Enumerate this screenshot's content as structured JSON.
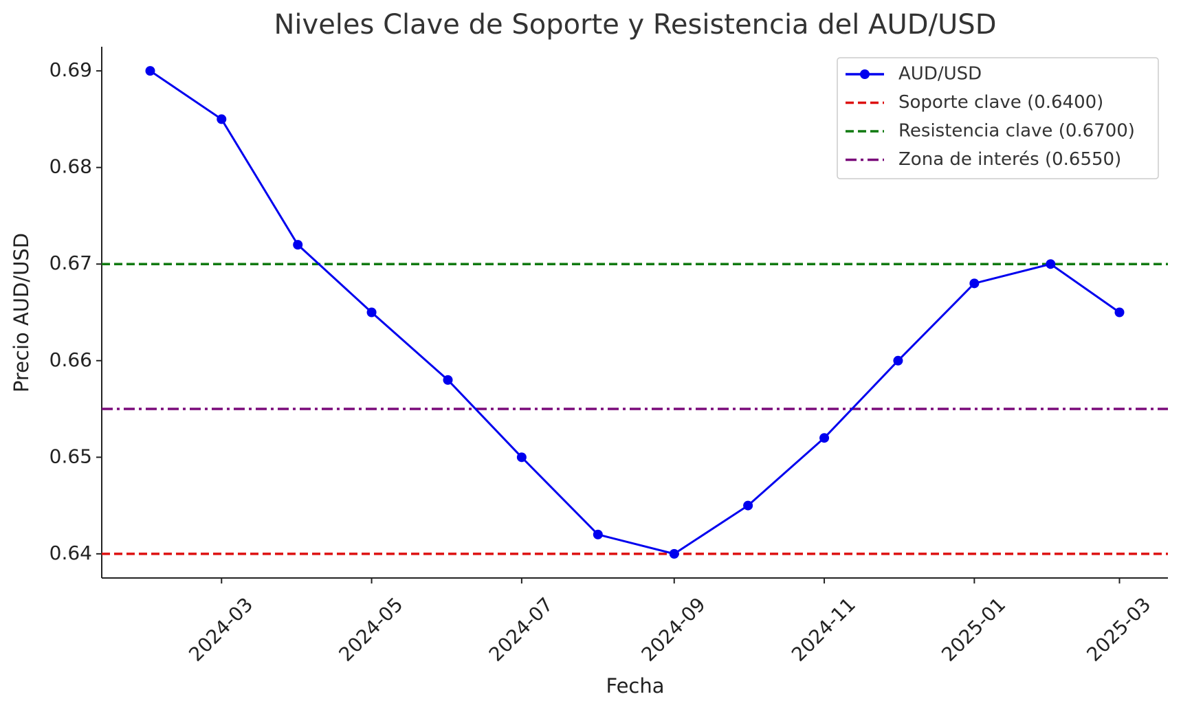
{
  "chart_data": {
    "type": "line",
    "title": "Niveles Clave de Soporte y Resistencia del AUD/USD",
    "xlabel": "Fecha",
    "ylabel": "Precio AUD/USD",
    "x": [
      "2024-02",
      "2024-03",
      "2024-04",
      "2024-05",
      "2024-06",
      "2024-07",
      "2024-08",
      "2024-09",
      "2024-10",
      "2024-11",
      "2024-12",
      "2025-01",
      "2025-02",
      "2025-03"
    ],
    "series": [
      {
        "name": "AUD/USD",
        "color": "#0000ee",
        "marker": "circle",
        "values": [
          0.69,
          0.685,
          0.672,
          0.665,
          0.658,
          0.65,
          0.642,
          0.64,
          0.645,
          0.652,
          0.66,
          0.668,
          0.67,
          0.665
        ]
      }
    ],
    "reference_lines": [
      {
        "name": "Soporte clave (0.6400)",
        "value": 0.64,
        "color": "#dd1111",
        "style": "dashed"
      },
      {
        "name": "Resistencia clave (0.6700)",
        "value": 0.67,
        "color": "#117a11",
        "style": "dashed"
      },
      {
        "name": "Zona de interés (0.6550)",
        "value": 0.655,
        "color": "#7a0a7a",
        "style": "dashdot"
      }
    ],
    "xticks": [
      "2024-03",
      "2024-05",
      "2024-07",
      "2024-09",
      "2024-11",
      "2025-01",
      "2025-03"
    ],
    "ylim": [
      0.6375,
      0.6925
    ],
    "yticks": [
      0.64,
      0.65,
      0.66,
      0.67,
      0.68,
      0.69
    ],
    "grid": false,
    "legend": "upper right"
  }
}
